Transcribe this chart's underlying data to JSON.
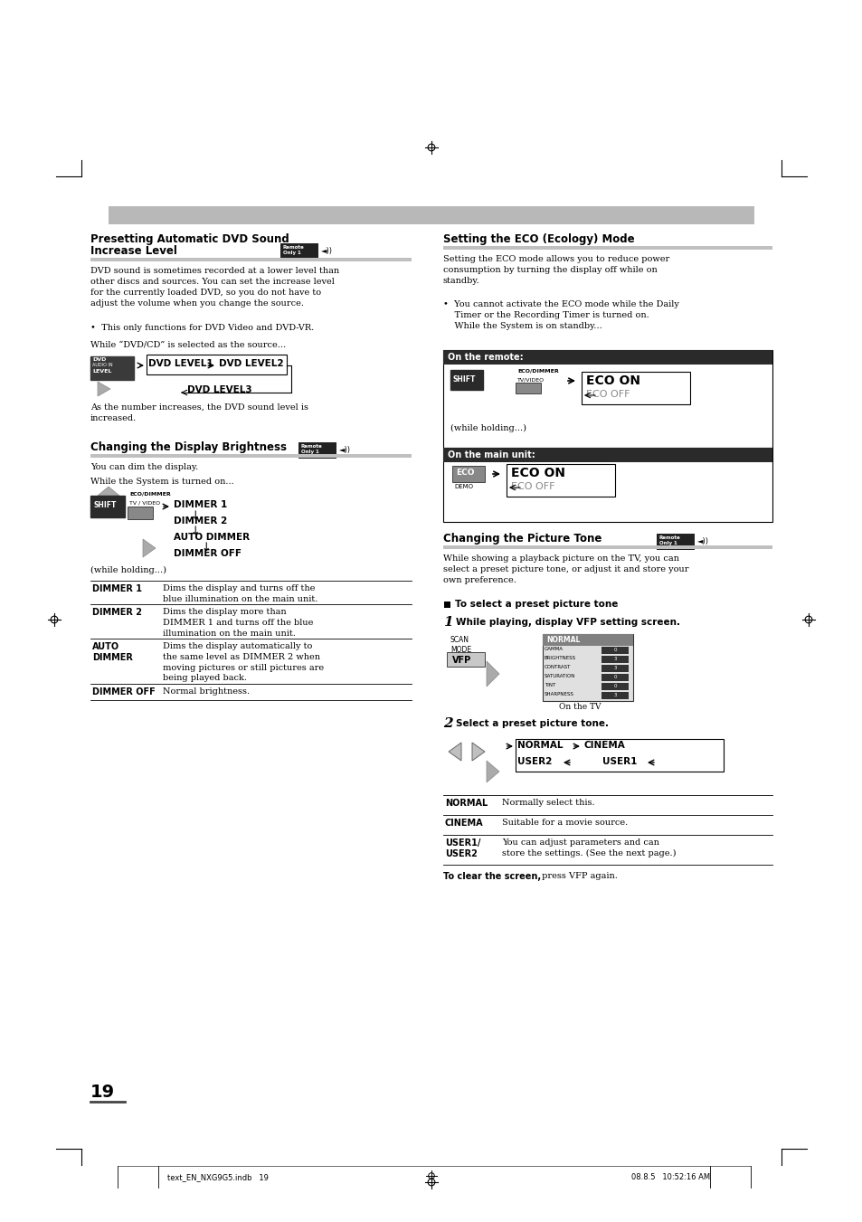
{
  "bg_color": "#ffffff",
  "header_bar_color": "#b8b8b8",
  "dark_header_color": "#2c2c2c",
  "page_number": "19",
  "footer_left": "text_EN_NXG9G5.indb   19",
  "footer_right": "08.8.5   10:52:16 AM",
  "section2_table": [
    [
      "DIMMER 1",
      "Dims the display and turns off the\nblue illumination on the main unit."
    ],
    [
      "DIMMER 2",
      "Dims the display more than\nDIMMER 1 and turns off the blue\nillumination on the main unit."
    ],
    [
      "AUTO\nDIMMER",
      "Dims the display automatically to\nthe same level as DIMMER 2 when\nmoving pictures or still pictures are\nbeing played back."
    ],
    [
      "DIMMER OFF",
      "Normal brightness."
    ]
  ],
  "section4_table": [
    [
      "NORMAL",
      "Normally select this."
    ],
    [
      "CINEMA",
      "Suitable for a movie source."
    ],
    [
      "USER1/\nUSER2",
      "You can adjust parameters and can\nstore the settings. (See the next page.)"
    ]
  ]
}
